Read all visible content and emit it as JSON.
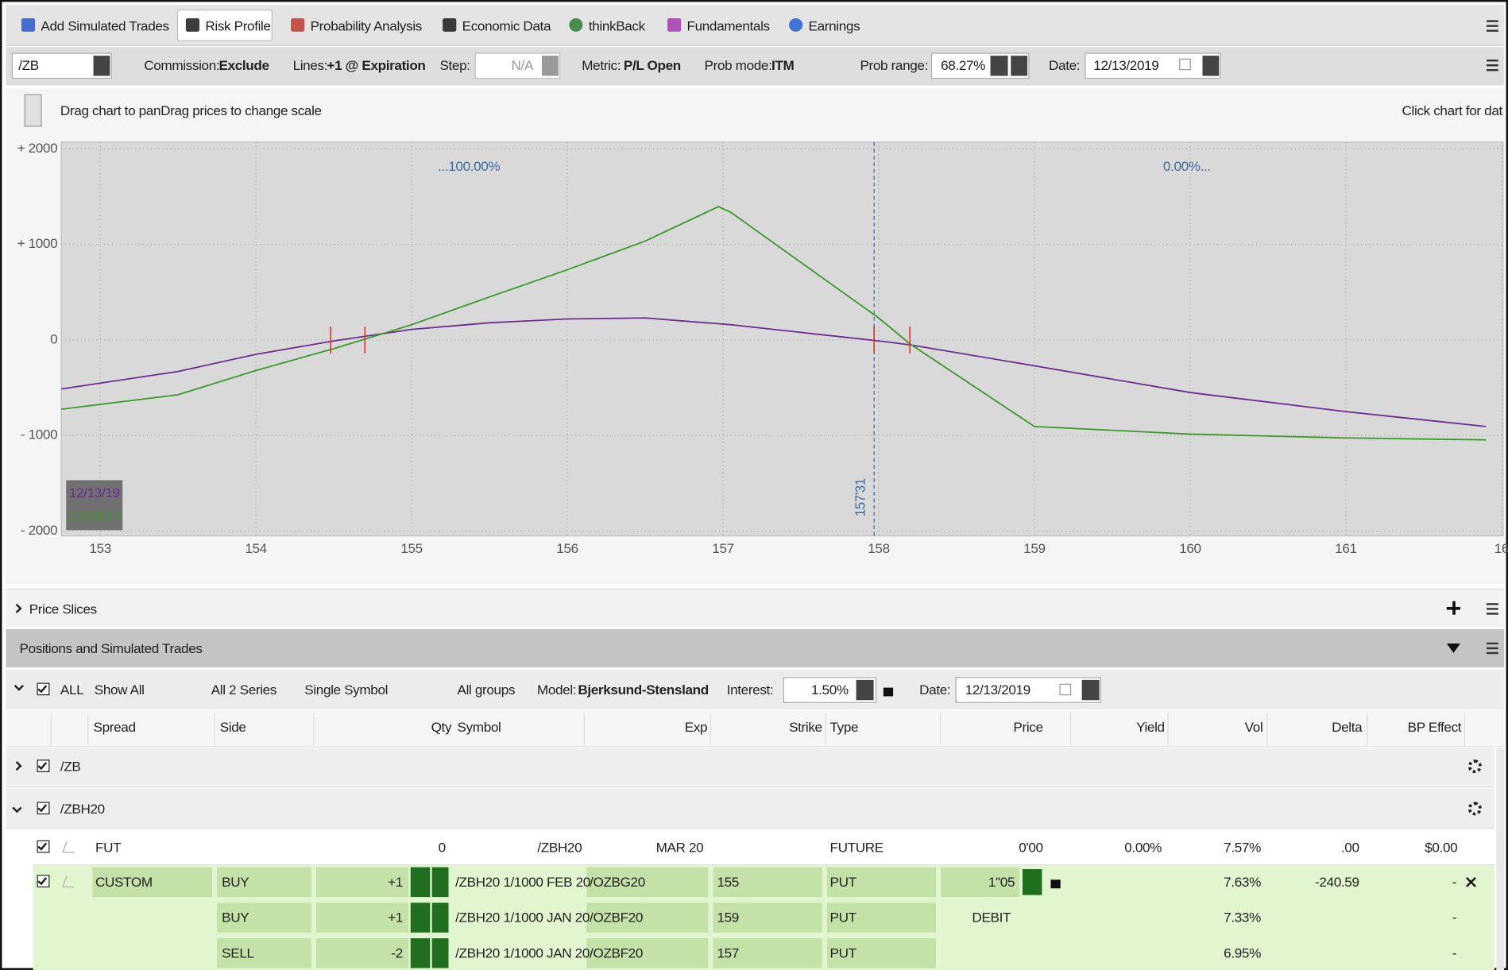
{
  "toolbar": {
    "tabs": [
      "Add Simulated Trades",
      "Risk Profile",
      "Probability Analysis",
      "Economic Data",
      "thinkBack",
      "Fundamentals",
      "Earnings"
    ]
  },
  "settings": {
    "symbol": "/ZB",
    "commission_label": "Commission:",
    "commission": "Exclude",
    "lines_label": "Lines:",
    "lines": "+1 @ Expiration",
    "step_label": "Step:",
    "step": "N/A",
    "metric_label": "Metric:",
    "metric": "P/L Open",
    "prob_mode_label": "Prob mode:",
    "prob_mode": "ITM",
    "prob_range_label": "Prob range:",
    "prob_range": "68.27%",
    "date_label": "Date:",
    "date": "12/13/2019"
  },
  "hint_left": "Drag chart to panDrag prices to change scale",
  "hint_right": "Click chart for data",
  "chart_data": {
    "type": "line",
    "x": [
      152.75,
      153.5,
      154,
      154.5,
      155,
      155.5,
      156,
      156.5,
      156.97,
      157.05,
      158,
      158.2,
      159,
      160,
      161,
      161.9
    ],
    "series": [
      {
        "name": "12/13/19",
        "color": "#6a2c91",
        "values": [
          -513,
          -330,
          -150,
          -10,
          110,
          180,
          220,
          230,
          170,
          160,
          -10,
          -50,
          -270,
          -550,
          -750,
          -905
        ]
      },
      {
        "name": "12/28/19",
        "color": "#3a9a2a",
        "values": [
          -725,
          -573,
          -320,
          -90,
          160,
          450,
          735,
          1035,
          1395,
          1335,
          230,
          -40,
          -905,
          -985,
          -1025,
          -1045
        ]
      }
    ],
    "xlim": [
      152.75,
      162.01
    ],
    "ylim": [
      -2050,
      2070
    ],
    "xticks": [
      153,
      154,
      155,
      156,
      157,
      158,
      159,
      160,
      161,
      {
        "value": 162,
        "label": "16"
      }
    ],
    "yticks": [
      {
        "value": 2000,
        "label": "+ 2000"
      },
      {
        "value": 1000,
        "label": "+ 1000"
      },
      0,
      {
        "value": -1000,
        "label": "- 1000"
      },
      {
        "value": -2000,
        "label": "- 2000"
      }
    ],
    "grid": true,
    "prob_labels": [
      "...100.00%",
      "0.00%..."
    ],
    "current_price": {
      "value": 157.97,
      "label": "157'31"
    },
    "breakevens": [
      154.48,
      154.7,
      157.97,
      158.2
    ]
  },
  "price_slices": "Price Slices",
  "positions": {
    "title": "Positions and Simulated Trades",
    "filters": {
      "all": "ALL",
      "show": "Show All",
      "series": "All 2 Series",
      "symbol": "Single Symbol",
      "groups": "All groups",
      "model_label": "Model:",
      "model": "Bjerksund-Stensland",
      "interest_label": "Interest:",
      "interest": "1.50%",
      "date_label": "Date:",
      "date": "12/13/2019"
    },
    "columns": [
      "Spread",
      "Side",
      "Qty",
      "Symbol",
      "Exp",
      "Strike",
      "Type",
      "Price",
      "Yield",
      "Vol",
      "Delta",
      "BP Effect"
    ],
    "groups": [
      "/ZB",
      "/ZBH20"
    ],
    "rows": [
      [
        "FUT",
        null,
        "0",
        "/ZBH20",
        "MAR 20",
        null,
        "FUTURE",
        "0'00",
        "0.00%",
        "7.57%",
        ".00",
        "$0.00"
      ],
      [
        "CUSTOM",
        "BUY",
        "+1",
        "/ZBH20 1/1000 FEB 20",
        "/OZBG20",
        "155",
        "PUT",
        "1''05",
        null,
        "7.63%",
        "-240.59",
        "-"
      ],
      [
        null,
        "BUY",
        "+1",
        "/ZBH20 1/1000 JAN 20",
        "/OZBF20",
        "159",
        "PUT",
        "DEBIT",
        null,
        "7.33%",
        null,
        "-"
      ],
      [
        null,
        "SELL",
        "-2",
        "/ZBH20 1/1000 JAN 20",
        "/OZBF20",
        "157",
        "PUT",
        null,
        null,
        "6.95%",
        null,
        "-"
      ]
    ]
  }
}
